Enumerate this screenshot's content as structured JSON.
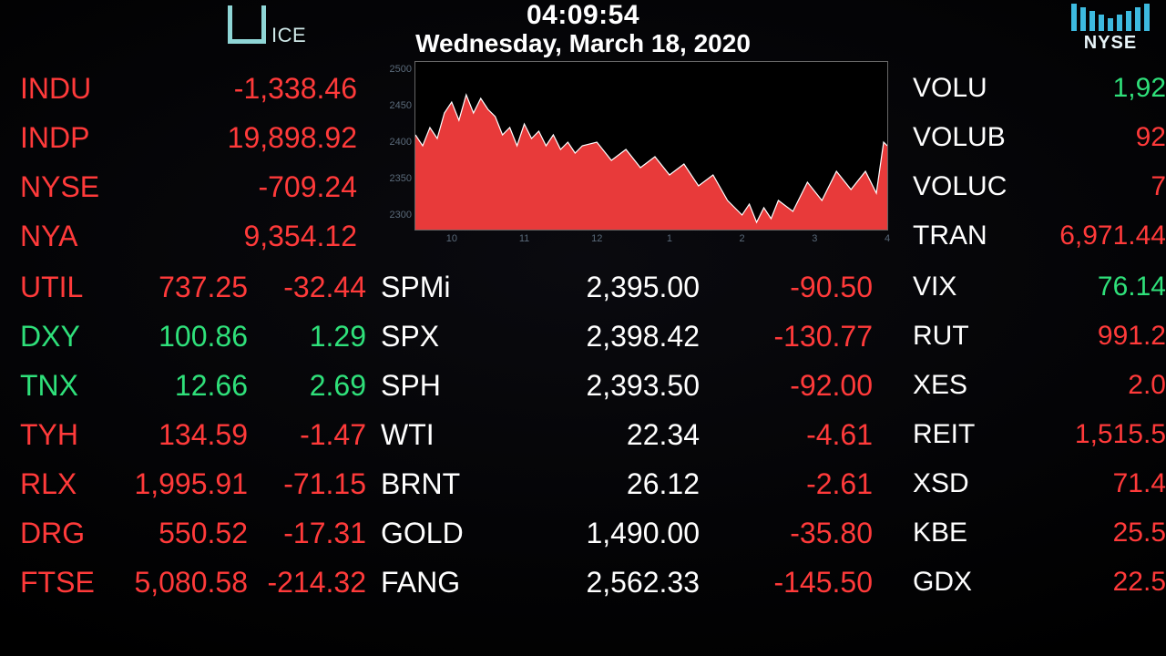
{
  "colors": {
    "background": "#000000",
    "negative": "#ff3a3a",
    "positive": "#2fe07a",
    "neutral": "#ffffff",
    "ice": "#8fd6d6",
    "nyse_bar": "#3dbadf",
    "chart_fill": "#e83a3a",
    "chart_line": "#ffffff",
    "chart_axis": "#666666",
    "chart_tick": "#5a6a7a"
  },
  "header": {
    "ice_label": "ICE",
    "time": "04:09:54",
    "date": "Wednesday, March 18, 2020",
    "nyse_label": "NYSE",
    "nyse_bar_heights": [
      30,
      26,
      22,
      18,
      14,
      18,
      22,
      26,
      30
    ]
  },
  "left_top": [
    {
      "sym": "INDU",
      "val": "-1,338.46",
      "cls": "neg"
    },
    {
      "sym": "INDP",
      "val": "19,898.92",
      "cls": "neg"
    },
    {
      "sym": "NYSE",
      "val": "-709.24",
      "cls": "neg"
    },
    {
      "sym": "NYA",
      "val": "9,354.12",
      "cls": "neg"
    }
  ],
  "left_bot": [
    {
      "sym": "UTIL",
      "v1": "737.25",
      "v2": "-32.44",
      "cls": "neg"
    },
    {
      "sym": "DXY",
      "v1": "100.86",
      "v2": "1.29",
      "cls": "pos"
    },
    {
      "sym": "TNX",
      "v1": "12.66",
      "v2": "2.69",
      "cls": "pos"
    },
    {
      "sym": "TYH",
      "v1": "134.59",
      "v2": "-1.47",
      "cls": "neg"
    },
    {
      "sym": "RLX",
      "v1": "1,995.91",
      "v2": "-71.15",
      "cls": "neg"
    },
    {
      "sym": "DRG",
      "v1": "550.52",
      "v2": "-17.31",
      "cls": "neg"
    },
    {
      "sym": "FTSE",
      "v1": "5,080.58",
      "v2": "-214.32",
      "cls": "neg"
    }
  ],
  "center": [
    {
      "sym": "SPMi",
      "v1": "2,395.00",
      "v2": "-90.50",
      "cls": "neg"
    },
    {
      "sym": "SPX",
      "v1": "2,398.42",
      "v2": "-130.77",
      "cls": "neg"
    },
    {
      "sym": "SPH",
      "v1": "2,393.50",
      "v2": "-92.00",
      "cls": "neg"
    },
    {
      "sym": "WTI",
      "v1": "22.34",
      "v2": "-4.61",
      "cls": "neg"
    },
    {
      "sym": "BRNT",
      "v1": "26.12",
      "v2": "-2.61",
      "cls": "neg"
    },
    {
      "sym": "GOLD",
      "v1": "1,490.00",
      "v2": "-35.80",
      "cls": "neg"
    },
    {
      "sym": "FANG",
      "v1": "2,562.33",
      "v2": "-145.50",
      "cls": "neg"
    }
  ],
  "right_top": [
    {
      "sym": "VOLU",
      "val": "1,92",
      "cls": "pos"
    },
    {
      "sym": "VOLUB",
      "val": "92",
      "cls": "neg"
    },
    {
      "sym": "VOLUC",
      "val": "7",
      "cls": "neg"
    },
    {
      "sym": "TRAN",
      "val": "6,971.44",
      "cls": "neg"
    }
  ],
  "right_bot": [
    {
      "sym": "VIX",
      "val": "76.14",
      "cls": "pos"
    },
    {
      "sym": "RUT",
      "val": "991.2",
      "cls": "neg"
    },
    {
      "sym": "XES",
      "val": "2.0",
      "cls": "neg"
    },
    {
      "sym": "REIT",
      "val": "1,515.5",
      "cls": "neg"
    },
    {
      "sym": "XSD",
      "val": "71.4",
      "cls": "neg"
    },
    {
      "sym": "KBE",
      "val": "25.5",
      "cls": "neg"
    },
    {
      "sym": "GDX",
      "val": "22.5",
      "cls": "neg"
    }
  ],
  "chart": {
    "type": "area",
    "ymin": 2280,
    "ymax": 2510,
    "yticks": [
      2300,
      2350,
      2400,
      2450,
      2500
    ],
    "xmin": 9.5,
    "xmax": 16.0,
    "xticks": [
      10,
      11,
      12,
      13,
      14,
      15,
      16
    ],
    "xtick_labels": [
      "10",
      "11",
      "12",
      "1",
      "2",
      "3",
      "4"
    ],
    "fill_color": "#e83a3a",
    "line_color": "#ffffff",
    "line_width": 1.2,
    "background_color": "#000000",
    "border_color": "#666666",
    "tick_font_size": 11,
    "tick_color": "#5a6a7a",
    "points": [
      [
        9.5,
        2410
      ],
      [
        9.6,
        2395
      ],
      [
        9.7,
        2420
      ],
      [
        9.8,
        2405
      ],
      [
        9.9,
        2440
      ],
      [
        10.0,
        2455
      ],
      [
        10.1,
        2430
      ],
      [
        10.2,
        2465
      ],
      [
        10.3,
        2440
      ],
      [
        10.4,
        2460
      ],
      [
        10.5,
        2445
      ],
      [
        10.6,
        2435
      ],
      [
        10.7,
        2410
      ],
      [
        10.8,
        2420
      ],
      [
        10.9,
        2395
      ],
      [
        11.0,
        2425
      ],
      [
        11.1,
        2405
      ],
      [
        11.2,
        2415
      ],
      [
        11.3,
        2395
      ],
      [
        11.4,
        2410
      ],
      [
        11.5,
        2390
      ],
      [
        11.6,
        2400
      ],
      [
        11.7,
        2385
      ],
      [
        11.8,
        2395
      ],
      [
        12.0,
        2400
      ],
      [
        12.2,
        2375
      ],
      [
        12.4,
        2390
      ],
      [
        12.6,
        2365
      ],
      [
        12.8,
        2380
      ],
      [
        13.0,
        2355
      ],
      [
        13.2,
        2370
      ],
      [
        13.4,
        2340
      ],
      [
        13.6,
        2355
      ],
      [
        13.8,
        2320
      ],
      [
        14.0,
        2300
      ],
      [
        14.1,
        2315
      ],
      [
        14.2,
        2290
      ],
      [
        14.3,
        2310
      ],
      [
        14.4,
        2295
      ],
      [
        14.5,
        2320
      ],
      [
        14.7,
        2305
      ],
      [
        14.9,
        2345
      ],
      [
        15.1,
        2320
      ],
      [
        15.3,
        2360
      ],
      [
        15.5,
        2335
      ],
      [
        15.7,
        2360
      ],
      [
        15.85,
        2330
      ],
      [
        15.95,
        2400
      ],
      [
        16.0,
        2395
      ]
    ]
  }
}
